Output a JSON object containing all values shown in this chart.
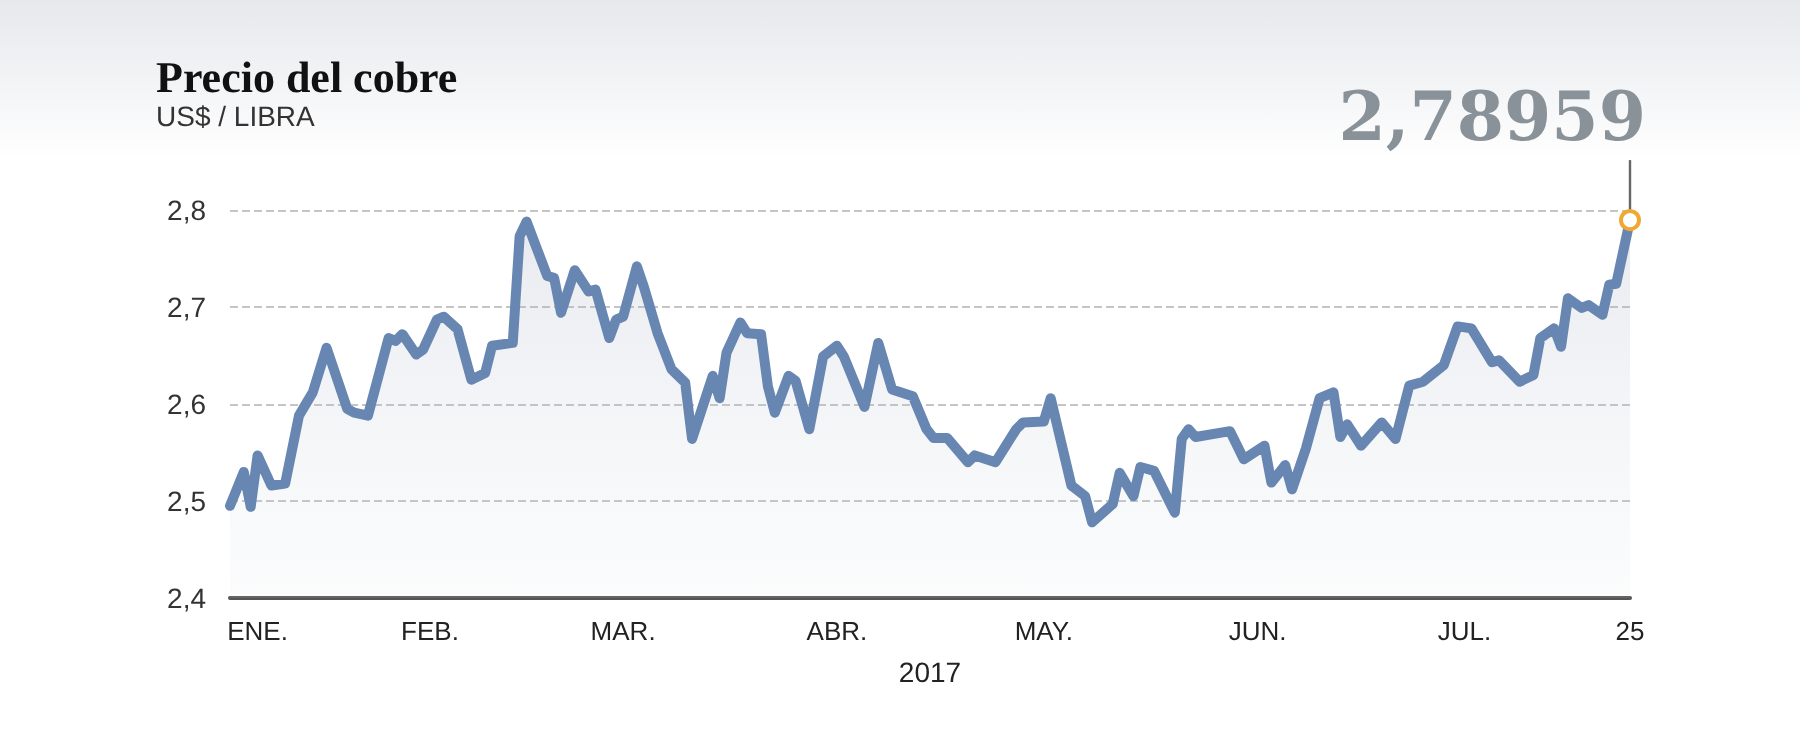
{
  "chart_data": {
    "type": "area",
    "title": "Precio del cobre",
    "subtitle": "US$ / LIBRA",
    "xlabel": "2017",
    "x": [
      "2017-01-03",
      "2017-01-05",
      "2017-01-06",
      "2017-01-07",
      "2017-01-09",
      "2017-01-11",
      "2017-01-13",
      "2017-01-15",
      "2017-01-17",
      "2017-01-20",
      "2017-01-21",
      "2017-01-23",
      "2017-01-26",
      "2017-01-27",
      "2017-01-28",
      "2017-01-30",
      "2017-01-31",
      "2017-02-02",
      "2017-02-03",
      "2017-02-05",
      "2017-02-07",
      "2017-02-09",
      "2017-02-10",
      "2017-02-13",
      "2017-02-14",
      "2017-02-15",
      "2017-02-18",
      "2017-02-19",
      "2017-02-20",
      "2017-02-22",
      "2017-02-24",
      "2017-02-25",
      "2017-02-27",
      "2017-02-28",
      "2017-03-01",
      "2017-03-03",
      "2017-03-04",
      "2017-03-06",
      "2017-03-08",
      "2017-03-10",
      "2017-03-11",
      "2017-03-14",
      "2017-03-15",
      "2017-03-16",
      "2017-03-18",
      "2017-03-19",
      "2017-03-21",
      "2017-03-22",
      "2017-03-23",
      "2017-03-25",
      "2017-03-26",
      "2017-03-28",
      "2017-03-30",
      "2017-04-01",
      "2017-04-02",
      "2017-04-05",
      "2017-04-07",
      "2017-04-09",
      "2017-04-12",
      "2017-04-14",
      "2017-04-15",
      "2017-04-17",
      "2017-04-20",
      "2017-04-21",
      "2017-04-24",
      "2017-04-27",
      "2017-04-28",
      "2017-05-01",
      "2017-05-02",
      "2017-05-05",
      "2017-05-07",
      "2017-05-08",
      "2017-05-11",
      "2017-05-12",
      "2017-05-14",
      "2017-05-15",
      "2017-05-17",
      "2017-05-20",
      "2017-05-21",
      "2017-05-22",
      "2017-05-23",
      "2017-05-28",
      "2017-05-30",
      "2017-06-02",
      "2017-06-03",
      "2017-06-05",
      "2017-06-06",
      "2017-06-08",
      "2017-06-10",
      "2017-06-12",
      "2017-06-13",
      "2017-06-14",
      "2017-06-16",
      "2017-06-19",
      "2017-06-21",
      "2017-06-23",
      "2017-06-25",
      "2017-06-28",
      "2017-06-30",
      "2017-07-02",
      "2017-07-05",
      "2017-07-06",
      "2017-07-09",
      "2017-07-11",
      "2017-07-12",
      "2017-07-14",
      "2017-07-15",
      "2017-07-16",
      "2017-07-18",
      "2017-07-19",
      "2017-07-21",
      "2017-07-22",
      "2017-07-23",
      "2017-07-25"
    ],
    "series": [
      {
        "color": "#6786b2",
        "values": [
          2.495,
          2.53,
          2.494,
          2.547,
          2.516,
          2.518,
          2.588,
          2.612,
          2.658,
          2.595,
          2.591,
          2.588,
          2.668,
          2.665,
          2.672,
          2.651,
          2.656,
          2.687,
          2.69,
          2.677,
          2.625,
          2.632,
          2.66,
          2.663,
          2.773,
          2.788,
          2.732,
          2.73,
          2.694,
          2.738,
          2.716,
          2.718,
          2.668,
          2.687,
          2.69,
          2.742,
          2.721,
          2.673,
          2.636,
          2.622,
          2.564,
          2.629,
          2.606,
          2.653,
          2.684,
          2.673,
          2.672,
          2.618,
          2.591,
          2.629,
          2.624,
          2.574,
          2.649,
          2.66,
          2.649,
          2.597,
          2.663,
          2.615,
          2.608,
          2.574,
          2.565,
          2.565,
          2.54,
          2.547,
          2.54,
          2.574,
          2.581,
          2.582,
          2.606,
          2.516,
          2.505,
          2.478,
          2.497,
          2.529,
          2.505,
          2.535,
          2.531,
          2.488,
          2.564,
          2.574,
          2.566,
          2.572,
          2.543,
          2.557,
          2.519,
          2.537,
          2.512,
          2.554,
          2.606,
          2.612,
          2.566,
          2.579,
          2.557,
          2.581,
          2.564,
          2.619,
          2.623,
          2.64,
          2.68,
          2.678,
          2.643,
          2.645,
          2.623,
          2.63,
          2.668,
          2.678,
          2.659,
          2.709,
          2.699,
          2.702,
          2.692,
          2.723,
          2.724,
          2.78959
        ]
      }
    ],
    "xlim": [
      "2017-01-03",
      "2017-07-25"
    ],
    "xticks": [
      {
        "value": "2017-01-07",
        "label": "ENE."
      },
      {
        "value": "2017-02-01",
        "label": "FEB."
      },
      {
        "value": "2017-03-01",
        "label": "MAR."
      },
      {
        "value": "2017-04-01",
        "label": "ABR."
      },
      {
        "value": "2017-05-01",
        "label": "MAY."
      },
      {
        "value": "2017-06-01",
        "label": "JUN."
      },
      {
        "value": "2017-07-01",
        "label": "JUL."
      },
      {
        "value": "2017-07-25",
        "label": "25"
      }
    ],
    "ylim": [
      2.4,
      2.8
    ],
    "yticks": [
      {
        "value": 2.4,
        "label": "2,4"
      },
      {
        "value": 2.5,
        "label": "2,5"
      },
      {
        "value": 2.6,
        "label": "2,6"
      },
      {
        "value": 2.7,
        "label": "2,7"
      },
      {
        "value": 2.8,
        "label": "2,8"
      }
    ],
    "grid": "y",
    "marker": "none",
    "annotations": [
      {
        "text": "2,78959",
        "x": "2017-07-25",
        "y": 2.78959
      }
    ]
  }
}
